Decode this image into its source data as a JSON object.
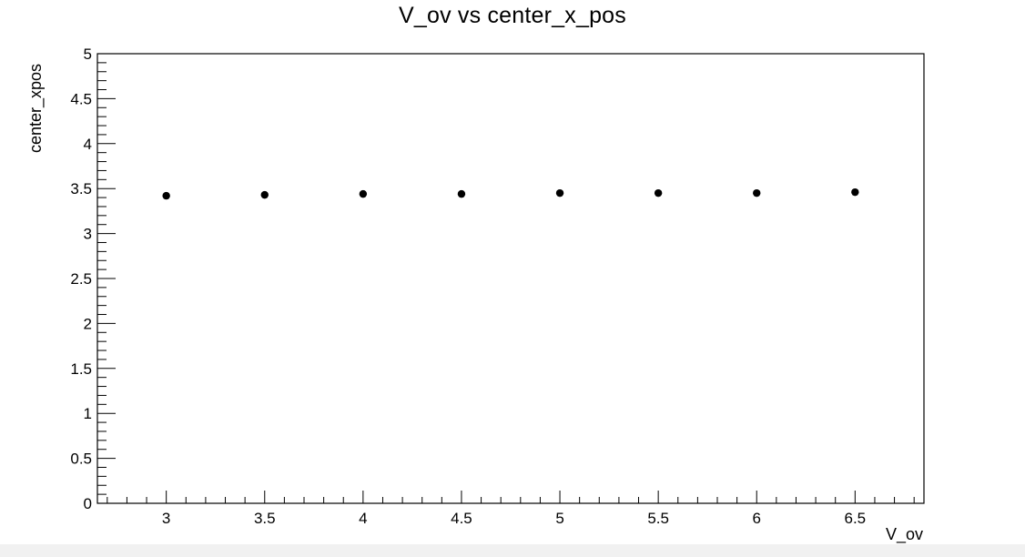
{
  "chart_data": {
    "type": "scatter",
    "title": "V_ov vs center_x_pos",
    "xlabel": "V_ov",
    "ylabel": "center_xpos",
    "xlim": [
      2.65,
      6.85
    ],
    "ylim": [
      0,
      5
    ],
    "x_ticks": [
      "3",
      "3.5",
      "4",
      "4.5",
      "5",
      "5.5",
      "6",
      "6.5"
    ],
    "y_ticks": [
      "0",
      "0.5",
      "1",
      "1.5",
      "2",
      "2.5",
      "3",
      "3.5",
      "4",
      "4.5",
      "5"
    ],
    "grid": false,
    "legend": "none",
    "marker_color": "#000000",
    "x": [
      3.0,
      3.5,
      4.0,
      4.5,
      5.0,
      5.5,
      6.0,
      6.5
    ],
    "y": [
      3.42,
      3.43,
      3.44,
      3.44,
      3.45,
      3.45,
      3.45,
      3.46
    ]
  }
}
